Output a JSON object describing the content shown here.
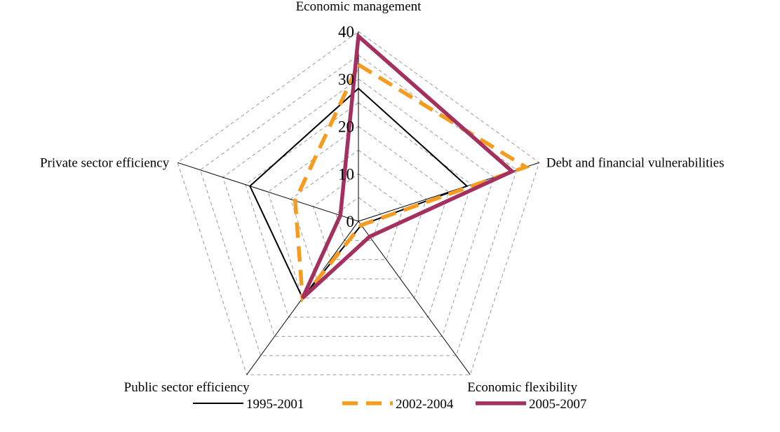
{
  "chart_data": {
    "type": "radar",
    "categories": [
      "Economic management",
      "Debt and financial vulnerabilities",
      "Economic flexibility",
      "Public sector efficiency",
      "Private sector efficiency"
    ],
    "rmin": 0,
    "rmax": 40,
    "ticks": [
      0,
      10,
      20,
      30,
      40
    ],
    "tick_labels": [
      "0",
      "10",
      "20",
      "30",
      "40"
    ],
    "grid": true,
    "legend_position": "bottom",
    "series": [
      {
        "name": "1995-2001",
        "values": [
          28,
          24,
          1,
          20,
          24
        ],
        "color": "#000000",
        "style": "solid-thin"
      },
      {
        "name": "2002-2004",
        "values": [
          33,
          37,
          1,
          20,
          14
        ],
        "color": "#F79B1E",
        "style": "dashed-thick"
      },
      {
        "name": "2005-2007",
        "values": [
          39,
          34,
          4,
          20,
          4
        ],
        "color": "#A3305F",
        "style": "solid-thick"
      }
    ]
  }
}
